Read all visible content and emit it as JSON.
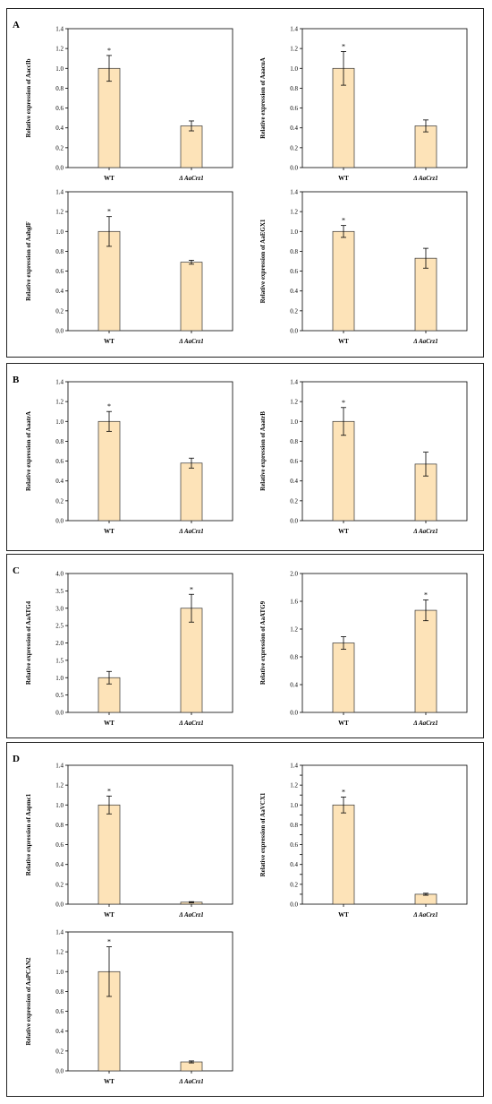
{
  "panels": [
    {
      "letter": "A"
    },
    {
      "letter": "B"
    },
    {
      "letter": "C"
    },
    {
      "letter": "D"
    }
  ],
  "colors": {
    "bar_fill": "#fde3b8",
    "bar_stroke": "#333333",
    "axis": "#000000"
  },
  "chart_data": [
    {
      "type": "bar",
      "panel": "A",
      "categories": [
        "WT",
        "Δ AaCrz1"
      ],
      "values": [
        1.0,
        0.42
      ],
      "errors": [
        0.13,
        0.05
      ],
      "significance": [
        "*",
        ""
      ],
      "ylabel": "Relative expression of AaccIb",
      "ylim": [
        0,
        1.4
      ],
      "yticks": [
        "0.0",
        "0.2",
        "0.4",
        "0.6",
        "0.8",
        "1.0",
        "1.2",
        "1.4"
      ]
    },
    {
      "type": "bar",
      "panel": "A",
      "categories": [
        "WT",
        "Δ AaCrz1"
      ],
      "values": [
        1.0,
        0.42
      ],
      "errors": [
        0.17,
        0.06
      ],
      "significance": [
        "*",
        ""
      ],
      "ylabel": "Relative expression of AaacuA",
      "ylim": [
        0,
        1.4
      ],
      "yticks": [
        "0.0",
        "0.2",
        "0.4",
        "0.6",
        "0.8",
        "1.0",
        "1.2",
        "1.4"
      ]
    },
    {
      "type": "bar",
      "panel": "A",
      "categories": [
        "WT",
        "Δ AaCrz1"
      ],
      "values": [
        1.0,
        0.69
      ],
      "errors": [
        0.15,
        0.02
      ],
      "significance": [
        "*",
        ""
      ],
      "ylabel": "Relative expression of AabglF",
      "ylim": [
        0,
        1.4
      ],
      "yticks": [
        "0.0",
        "0.2",
        "0.4",
        "0.6",
        "0.8",
        "1.0",
        "1.2",
        "1.4"
      ]
    },
    {
      "type": "bar",
      "panel": "A",
      "categories": [
        "WT",
        "Δ AaCrz1"
      ],
      "values": [
        1.0,
        0.73
      ],
      "errors": [
        0.06,
        0.1
      ],
      "significance": [
        "*",
        ""
      ],
      "ylabel": "Relative expression of AaEGX1",
      "ylim": [
        0,
        1.4
      ],
      "yticks": [
        "0.0",
        "0.2",
        "0.4",
        "0.6",
        "0.8",
        "1.0",
        "1.2",
        "1.4"
      ]
    },
    {
      "type": "bar",
      "panel": "B",
      "categories": [
        "WT",
        "Δ AaCrz1"
      ],
      "values": [
        1.0,
        0.58
      ],
      "errors": [
        0.1,
        0.05
      ],
      "significance": [
        "*",
        ""
      ],
      "ylabel": "Relative expression of AaatrA",
      "ylim": [
        0,
        1.4
      ],
      "yticks": [
        "0.0",
        "0.2",
        "0.4",
        "0.6",
        "0.8",
        "1.0",
        "1.2",
        "1.4"
      ]
    },
    {
      "type": "bar",
      "panel": "B",
      "categories": [
        "WT",
        "Δ AaCrz1"
      ],
      "values": [
        1.0,
        0.57
      ],
      "errors": [
        0.14,
        0.12
      ],
      "significance": [
        "*",
        ""
      ],
      "ylabel": "Relative expression of AaatrB",
      "ylim": [
        0,
        1.4
      ],
      "yticks": [
        "0.0",
        "0.2",
        "0.4",
        "0.6",
        "0.8",
        "1.0",
        "1.2",
        "1.4"
      ]
    },
    {
      "type": "bar",
      "panel": "C",
      "categories": [
        "WT",
        "Δ AaCrz1"
      ],
      "values": [
        1.0,
        3.0
      ],
      "errors": [
        0.18,
        0.4
      ],
      "significance": [
        "",
        "*"
      ],
      "ylabel": "Relative expression of AaATG4",
      "ylim": [
        0,
        4.0
      ],
      "yticks": [
        "0.0",
        "0.5",
        "1.0",
        "1.5",
        "2.0",
        "2.5",
        "3.0",
        "3.5",
        "4.0"
      ]
    },
    {
      "type": "bar",
      "panel": "C",
      "categories": [
        "WT",
        "Δ AaCrz1"
      ],
      "values": [
        1.0,
        1.47
      ],
      "errors": [
        0.09,
        0.15
      ],
      "significance": [
        "",
        "*"
      ],
      "ylabel": "Relative expression of AaATG9",
      "ylim": [
        0,
        2.0
      ],
      "yticks": [
        "0.0",
        "0.4",
        "0.8",
        "1.2",
        "1.6",
        "2.0"
      ]
    },
    {
      "type": "bar",
      "panel": "D",
      "categories": [
        "WT",
        "Δ AaCrz1"
      ],
      "values": [
        1.0,
        0.02
      ],
      "errors": [
        0.09,
        0.005
      ],
      "significance": [
        "*",
        ""
      ],
      "ylabel": "Relative expression of Aapmc1",
      "ylim": [
        0,
        1.4
      ],
      "yticks": [
        "0.0",
        "0.2",
        "0.4",
        "0.6",
        "0.8",
        "1.0",
        "1.2",
        "1.4"
      ]
    },
    {
      "type": "bar",
      "panel": "D",
      "categories": [
        "WT",
        "Δ AaCrz1"
      ],
      "values": [
        1.0,
        0.1
      ],
      "errors": [
        0.08,
        0.01
      ],
      "significance": [
        "*",
        ""
      ],
      "ylabel": "Relative expression of AaVCX1",
      "ylim": [
        0,
        1.4
      ],
      "yticks": [
        "0.0",
        "0.1",
        "0.2",
        "0.3",
        "0.4",
        "0.5",
        "0.6",
        "0.7",
        "0.8",
        "0.9",
        "1.0",
        "1.1",
        "1.2",
        "1.3",
        "1.4"
      ]
    },
    {
      "type": "bar",
      "panel": "D",
      "categories": [
        "WT",
        "Δ AaCrz1"
      ],
      "values": [
        1.0,
        0.09
      ],
      "errors": [
        0.25,
        0.01
      ],
      "significance": [
        "*",
        ""
      ],
      "ylabel": "Relative expression of AaPCAN2",
      "ylim": [
        0,
        1.4
      ],
      "yticks": [
        "0.0",
        "0.2",
        "0.4",
        "0.6",
        "0.8",
        "1.0",
        "1.2",
        "1.4"
      ]
    }
  ]
}
